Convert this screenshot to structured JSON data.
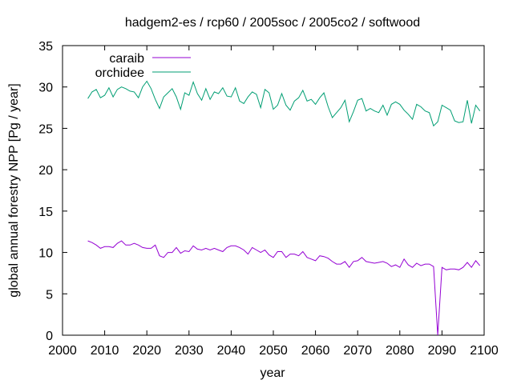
{
  "chart_data": {
    "type": "line",
    "title": "hadgem2-es / rcp60 / 2005soc / 2005co2 / softwood",
    "xlabel": "year",
    "ylabel": "global annual forestry NPP [Pg / year]",
    "xlim": [
      2000,
      2100
    ],
    "ylim": [
      0,
      35
    ],
    "xticks": [
      2000,
      2010,
      2020,
      2030,
      2040,
      2050,
      2060,
      2070,
      2080,
      2090,
      2100
    ],
    "yticks": [
      0,
      5,
      10,
      15,
      20,
      25,
      30,
      35
    ],
    "grid": false,
    "legend_position": "top-left",
    "x_start": 2006,
    "series": [
      {
        "name": "caraib",
        "color": "#9400d3",
        "values": [
          11.4,
          11.2,
          10.9,
          10.5,
          10.7,
          10.7,
          10.6,
          11.1,
          11.4,
          10.9,
          10.9,
          11.1,
          10.9,
          10.6,
          10.5,
          10.5,
          10.9,
          9.6,
          9.4,
          10.0,
          10.0,
          10.6,
          9.9,
          10.2,
          10.1,
          10.8,
          10.4,
          10.3,
          10.5,
          10.3,
          10.5,
          10.3,
          10.1,
          10.6,
          10.8,
          10.8,
          10.6,
          10.3,
          9.8,
          10.6,
          10.3,
          10.0,
          10.3,
          9.7,
          9.4,
          10.1,
          10.1,
          9.4,
          9.8,
          9.8,
          9.6,
          10.1,
          9.4,
          9.2,
          9.0,
          9.6,
          9.5,
          9.3,
          8.9,
          8.6,
          8.6,
          8.9,
          8.2,
          8.9,
          9.0,
          9.4,
          8.9,
          8.8,
          8.7,
          8.8,
          8.9,
          8.7,
          8.3,
          8.5,
          8.2,
          9.2,
          8.5,
          8.2,
          8.7,
          8.4,
          8.6,
          8.6,
          8.3,
          0.0,
          8.2,
          7.9,
          8.0,
          8.0,
          7.9,
          8.2,
          8.8,
          8.2,
          9.0,
          8.4
        ]
      },
      {
        "name": "orchidee",
        "color": "#009e73",
        "values": [
          28.6,
          29.4,
          29.7,
          28.7,
          29.0,
          29.9,
          28.8,
          29.7,
          30.0,
          29.8,
          29.5,
          29.4,
          28.7,
          30.0,
          30.7,
          29.8,
          28.5,
          27.4,
          28.8,
          29.3,
          29.8,
          28.8,
          27.3,
          29.3,
          29.0,
          30.6,
          29.2,
          28.4,
          29.8,
          28.5,
          29.4,
          29.2,
          29.9,
          28.9,
          28.8,
          29.9,
          28.3,
          28.0,
          28.8,
          29.4,
          29.1,
          27.5,
          29.7,
          29.3,
          27.3,
          27.8,
          29.2,
          27.8,
          27.2,
          28.3,
          28.7,
          29.6,
          28.3,
          28.5,
          27.9,
          28.7,
          29.3,
          27.6,
          26.3,
          26.9,
          27.5,
          28.4,
          25.8,
          27.0,
          28.4,
          28.6,
          27.1,
          27.4,
          27.1,
          26.9,
          27.8,
          26.6,
          27.9,
          28.2,
          27.9,
          27.2,
          26.7,
          26.1,
          27.9,
          27.6,
          27.1,
          26.9,
          25.3,
          25.8,
          27.8,
          27.5,
          27.2,
          25.9,
          25.7,
          25.8,
          28.4,
          25.6,
          27.8,
          27.1
        ]
      }
    ]
  }
}
